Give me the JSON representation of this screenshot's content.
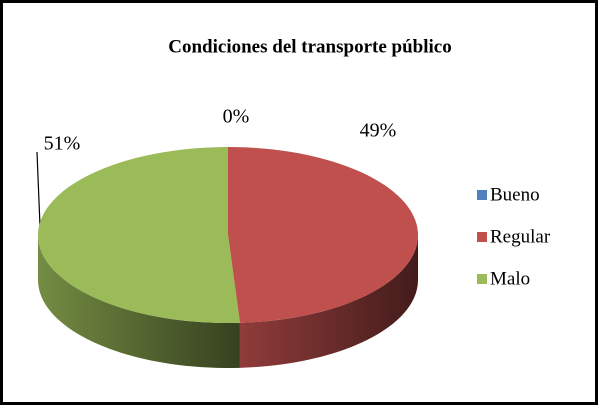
{
  "chart_data": {
    "type": "pie",
    "title": "Condiciones del transporte público",
    "categories": [
      "Bueno",
      "Regular",
      "Malo"
    ],
    "values": [
      0,
      49,
      51
    ],
    "value_labels": [
      "0%",
      "49%",
      "51%"
    ],
    "colors": [
      "#4f81bd",
      "#c0504d",
      "#9bbb59"
    ],
    "legend": "right"
  }
}
